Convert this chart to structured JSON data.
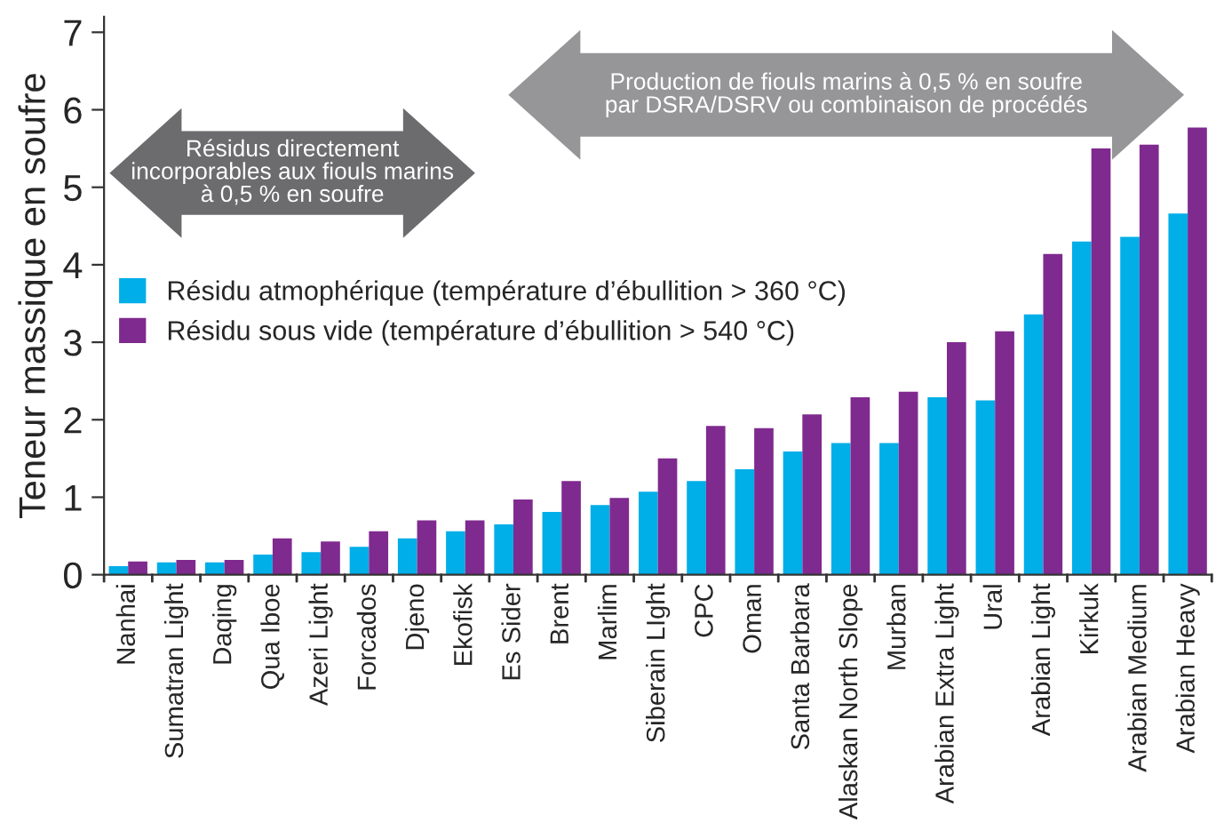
{
  "chart_data": {
    "type": "bar",
    "ylabel": "Teneur massique en soufre",
    "categories": [
      "Nanhai",
      "Sumatran Light",
      "Daqing",
      "Qua Iboe",
      "Azeri Light",
      "Forcados",
      "Djeno",
      "Ekofisk",
      "Es Sider",
      "Brent",
      "Marlim",
      "Siberain LIght",
      "CPC",
      "Oman",
      "Santa Barbara",
      "Alaskan North Slope",
      "Murban",
      "Arabian Extra Light",
      "Ural",
      "Arabian Light",
      "Kirkuk",
      "Arabian Medium",
      "Arabian Heavy"
    ],
    "series": [
      {
        "name": "Résidu atmophérique (température d’ébullition > 360 °C)",
        "color": "#00aee8",
        "values": [
          0.11,
          0.16,
          0.16,
          0.26,
          0.29,
          0.36,
          0.47,
          0.56,
          0.65,
          0.81,
          0.9,
          1.07,
          1.21,
          1.36,
          1.59,
          1.7,
          1.7,
          2.29,
          2.25,
          3.36,
          4.3,
          4.36,
          4.66
        ]
      },
      {
        "name": "Résidu sous vide (température d’ébullition > 540 °C)",
        "color": "#7f2a8f",
        "values": [
          0.17,
          0.19,
          0.19,
          0.47,
          0.43,
          0.56,
          0.7,
          0.7,
          0.97,
          1.21,
          0.99,
          1.5,
          1.92,
          1.89,
          2.07,
          2.29,
          2.36,
          3.0,
          3.14,
          4.14,
          5.5,
          5.55,
          5.77
        ]
      }
    ],
    "ylim": [
      0,
      7.2
    ],
    "yticks": [
      0,
      1,
      2,
      3,
      4,
      5,
      6,
      7
    ],
    "grid": false,
    "legend": "left",
    "annotations": [
      "Résidus directement\nincorporables aux fiouls marins\nà 0,5 % en soufre",
      "Production de fiouls marins à 0,5 % en soufre\npar DSRA/DSRV ou combinaison de procédés"
    ]
  }
}
